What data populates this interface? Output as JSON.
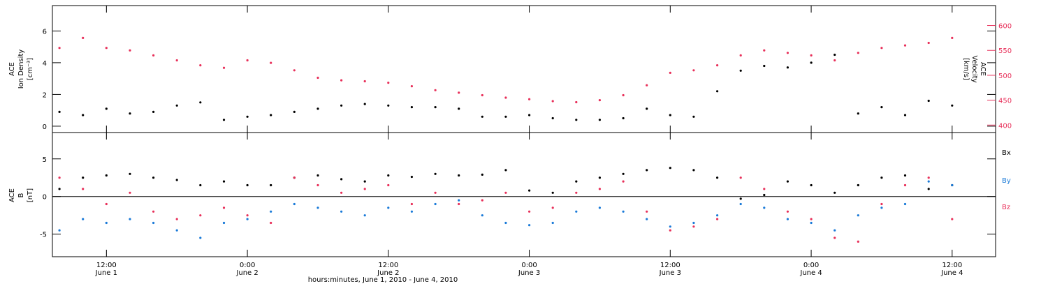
{
  "figure": {
    "xaxis_title": "hours:minutes, June  1, 2010 - June  4, 2010",
    "x_ticks": [
      {
        "time": "12:00",
        "day": "June 1",
        "hour": 12
      },
      {
        "time": "0:00",
        "day": "June 2",
        "hour": 24
      },
      {
        "time": "12:00",
        "day": "June 2",
        "hour": 36
      },
      {
        "time": "0:00",
        "day": "June 3",
        "hour": 48
      },
      {
        "time": "12:00",
        "day": "June 3",
        "hour": 60
      },
      {
        "time": "0:00",
        "day": "June 4",
        "hour": 72
      },
      {
        "time": "12:00",
        "day": "June 4",
        "hour": 84
      }
    ],
    "colors": {
      "black": "#000000",
      "red": "#e8305a",
      "blue": "#1a7ad8"
    }
  },
  "chart_data": [
    {
      "type": "scatter",
      "panel": "top",
      "left_ylabel": [
        "ACE",
        "Ion Density",
        "[cm⁻³]"
      ],
      "right_ylabel": [
        "ACE",
        "Velocity",
        "[km/s]"
      ],
      "xlim": [
        7.4,
        87.7
      ],
      "ylim": [
        -0.4,
        7.6
      ],
      "y2lim": [
        385,
        640
      ],
      "yticks": [
        0,
        2,
        4,
        6
      ],
      "y2ticks": [
        400,
        450,
        500,
        550,
        600
      ],
      "series": [
        {
          "color": "black",
          "axis": "left",
          "x": [
            8,
            10,
            12,
            14,
            16,
            18,
            20,
            22,
            24,
            26,
            28,
            30,
            32,
            34,
            36,
            38,
            40,
            42,
            44,
            46,
            48,
            50,
            52,
            54,
            56,
            58,
            60,
            62,
            64,
            66,
            68,
            70,
            72,
            74,
            76,
            78,
            80,
            82,
            84
          ],
          "y": [
            0.9,
            0.7,
            1.1,
            0.8,
            0.9,
            1.3,
            1.5,
            0.4,
            0.6,
            0.7,
            0.9,
            1.1,
            1.3,
            1.4,
            1.3,
            1.2,
            1.2,
            1.1,
            0.6,
            0.6,
            0.7,
            0.5,
            0.4,
            0.4,
            0.5,
            1.1,
            0.7,
            0.6,
            2.2,
            3.5,
            3.8,
            3.7,
            4.0,
            4.5,
            0.8,
            1.2,
            0.7,
            1.6,
            1.3
          ]
        },
        {
          "color": "red",
          "axis": "right",
          "x": [
            8,
            10,
            12,
            14,
            16,
            18,
            20,
            22,
            24,
            26,
            28,
            30,
            32,
            34,
            36,
            38,
            40,
            42,
            44,
            46,
            48,
            50,
            52,
            54,
            56,
            58,
            60,
            62,
            64,
            66,
            68,
            70,
            72,
            74,
            76,
            78,
            80,
            82,
            84
          ],
          "y": [
            555,
            575,
            555,
            550,
            540,
            530,
            520,
            515,
            530,
            525,
            510,
            495,
            490,
            488,
            485,
            478,
            470,
            465,
            460,
            455,
            452,
            448,
            446,
            450,
            460,
            480,
            505,
            510,
            520,
            540,
            550,
            545,
            540,
            530,
            545,
            555,
            560,
            565,
            575
          ]
        }
      ]
    },
    {
      "type": "scatter",
      "panel": "bottom",
      "left_ylabel": [
        "ACE",
        "B",
        "[nT]"
      ],
      "xlim": [
        7.4,
        87.7
      ],
      "ylim": [
        -8.0,
        8.5
      ],
      "yticks": [
        -5,
        0,
        5
      ],
      "zero_line": true,
      "legend": [
        "Bx",
        "By",
        "Bz"
      ],
      "legend_placement": "right",
      "series": [
        {
          "name": "Bx",
          "color": "black",
          "x": [
            8,
            10,
            12,
            14,
            16,
            18,
            20,
            22,
            24,
            26,
            28,
            30,
            32,
            34,
            36,
            38,
            40,
            42,
            44,
            46,
            48,
            50,
            52,
            54,
            56,
            58,
            60,
            62,
            64,
            66,
            68,
            70,
            72,
            74,
            76,
            78,
            80,
            82,
            84
          ],
          "y": [
            1.0,
            2.5,
            2.8,
            3.0,
            2.5,
            2.2,
            1.5,
            2.0,
            1.5,
            1.5,
            2.5,
            2.8,
            2.3,
            2.0,
            2.8,
            2.6,
            3.0,
            2.8,
            2.9,
            3.5,
            0.8,
            0.5,
            2.0,
            2.5,
            3.0,
            3.5,
            3.8,
            3.5,
            2.5,
            -0.3,
            0.2,
            2.0,
            1.5,
            0.5,
            1.5,
            2.5,
            2.8,
            1.0,
            1.5
          ]
        },
        {
          "name": "By",
          "color": "blue",
          "x": [
            8,
            10,
            12,
            14,
            16,
            18,
            20,
            22,
            24,
            26,
            28,
            30,
            32,
            34,
            36,
            38,
            40,
            42,
            44,
            46,
            48,
            50,
            52,
            54,
            56,
            58,
            60,
            62,
            64,
            66,
            68,
            70,
            72,
            74,
            76,
            78,
            80,
            82,
            84
          ],
          "y": [
            -4.5,
            -3.0,
            -3.5,
            -3.0,
            -3.5,
            -4.5,
            -5.5,
            -3.5,
            -3.0,
            -2.0,
            -1.0,
            -1.5,
            -2.0,
            -2.5,
            -1.5,
            -2.0,
            -1.0,
            -0.5,
            -2.5,
            -3.5,
            -3.8,
            -3.5,
            -2.0,
            -1.5,
            -2.0,
            -3.0,
            -4.0,
            -3.5,
            -2.5,
            -1.0,
            -1.5,
            -3.0,
            -3.5,
            -4.5,
            -2.5,
            -1.5,
            -1.0,
            2.0,
            1.5
          ]
        },
        {
          "name": "Bz",
          "color": "red",
          "x": [
            8,
            10,
            12,
            14,
            16,
            18,
            20,
            22,
            24,
            26,
            28,
            30,
            32,
            34,
            36,
            38,
            40,
            42,
            44,
            46,
            48,
            50,
            52,
            54,
            56,
            58,
            60,
            62,
            64,
            66,
            68,
            70,
            72,
            74,
            76,
            78,
            80,
            82,
            84
          ],
          "y": [
            2.5,
            1.0,
            -1.0,
            0.5,
            -2.0,
            -3.0,
            -2.5,
            -1.5,
            -2.5,
            -3.5,
            2.5,
            1.5,
            0.5,
            1.0,
            1.5,
            -1.0,
            0.5,
            -1.0,
            -0.5,
            0.5,
            -2.0,
            -1.5,
            0.5,
            1.0,
            2.0,
            -2.0,
            -4.5,
            -4.0,
            -3.0,
            2.5,
            1.0,
            -2.0,
            -3.0,
            -5.5,
            -6.0,
            -1.0,
            1.5,
            2.5,
            -3.0
          ]
        }
      ]
    }
  ]
}
